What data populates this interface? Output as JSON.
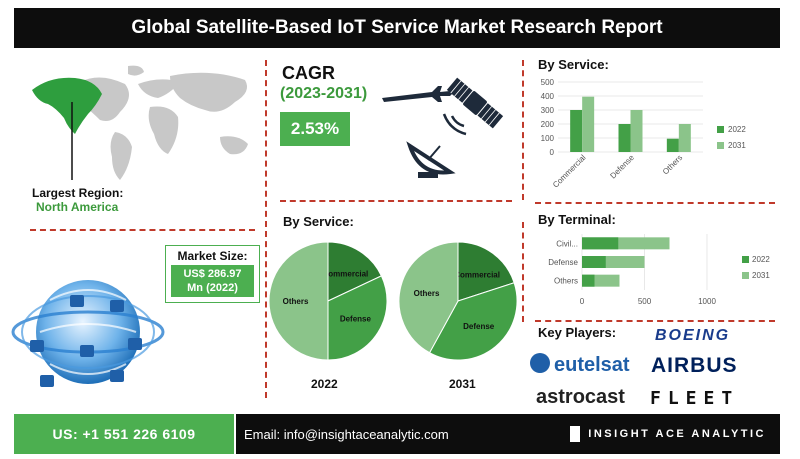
{
  "title": "Global Satellite-Based IoT Service Market Research Report",
  "largest_region": {
    "label": "Largest Region:",
    "value": "North America"
  },
  "cagr": {
    "label": "CAGR",
    "period": "(2023-2031)",
    "value": "2.53%"
  },
  "market_size": {
    "label": "Market Size:",
    "value_line1": "US$ 286.97",
    "value_line2": "Mn (2022)"
  },
  "pies": {
    "label": "By Service:",
    "year_a": "2022",
    "year_b": "2031"
  },
  "by_service_label": "By Service:",
  "by_terminal_label": "By Terminal:",
  "key_players": {
    "label": "Key Players:",
    "names": [
      "BOEING",
      "eutelsat",
      "AIRBUS",
      "astrocast",
      "FLEET"
    ]
  },
  "footer": {
    "phone": "US: +1 551 226 6109",
    "email": "Email: info@insightaceanalytic.com",
    "brand": "INSIGHT ACE ANALYTIC"
  },
  "colors": {
    "dark_green": "#2e7d32",
    "mid_green": "#43a047",
    "light_green": "#8bc48a",
    "accent_red": "#c0392b"
  },
  "chart_data": [
    {
      "type": "bar",
      "title": "By Service:",
      "categories": [
        "Commercial",
        "Defense",
        "Others"
      ],
      "series": [
        {
          "name": "2022",
          "values": [
            300,
            200,
            95
          ]
        },
        {
          "name": "2031",
          "values": [
            395,
            300,
            200
          ]
        }
      ],
      "ylim": [
        0,
        500
      ],
      "yticks": [
        0,
        100,
        200,
        300,
        400,
        500
      ],
      "legend": "right"
    },
    {
      "type": "bar",
      "orientation": "horizontal",
      "title": "By Terminal:",
      "categories": [
        "Civil...",
        "Defense",
        "Others"
      ],
      "series": [
        {
          "name": "2022",
          "values": [
            290,
            190,
            100
          ]
        },
        {
          "name": "2031",
          "values": [
            700,
            500,
            300
          ]
        }
      ],
      "xlim": [
        0,
        1000
      ],
      "xticks": [
        0,
        500,
        1000
      ],
      "legend": "right"
    },
    {
      "type": "pie",
      "title": "2022",
      "labels": [
        "Commercial",
        "Defense",
        "Others"
      ],
      "values": [
        18,
        32,
        50
      ]
    },
    {
      "type": "pie",
      "title": "2031",
      "labels": [
        "Commercial",
        "Defense",
        "Others"
      ],
      "values": [
        20,
        38,
        42
      ]
    }
  ]
}
